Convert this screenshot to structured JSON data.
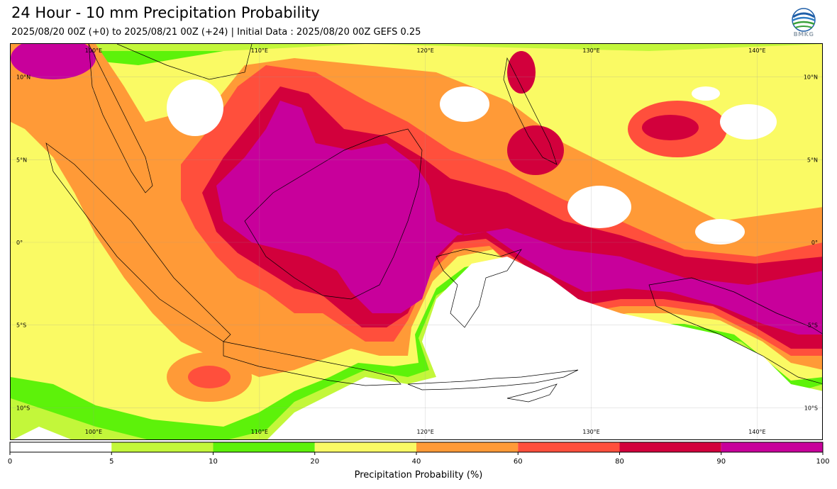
{
  "title": "24 Hour - 10 mm Precipitation Probability",
  "subtitle": "2025/08/20 00Z (+0) to 2025/08/21 00Z (+24) | Initial Data : 2025/08/20 00Z GEFS 0.25",
  "logo": {
    "text": "BMKG",
    "icon": "bmkg-logo-icon"
  },
  "map": {
    "lon_range": [
      95,
      144
    ],
    "lat_range": [
      -12,
      12
    ],
    "lon_labels": [
      "100°E",
      "110°E",
      "120°E",
      "130°E",
      "140°E"
    ],
    "lon_values": [
      100,
      110,
      120,
      130,
      140
    ],
    "lat_labels": [
      "10°N",
      "5°N",
      "0°",
      "5°S",
      "10°S"
    ],
    "lat_values": [
      10,
      5,
      0,
      -5,
      -10
    ]
  },
  "colorbar": {
    "title": "Precipitation Probability (%)",
    "ticks": [
      "0",
      "5",
      "10",
      "20",
      "40",
      "60",
      "80",
      "90",
      "100"
    ],
    "colors": [
      "#ffffff",
      "#c3f73a",
      "#5df20a",
      "#fafa64",
      "#ff9a37",
      "#ff4f3c",
      "#d2003c",
      "#c8009b"
    ]
  }
}
